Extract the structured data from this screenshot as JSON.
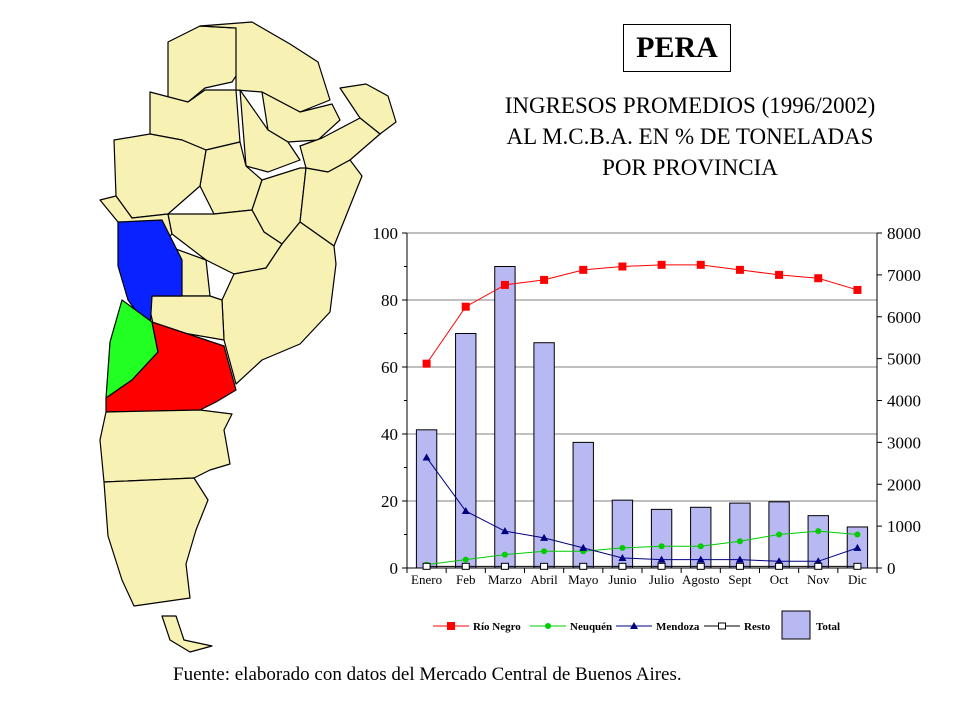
{
  "title_box": "PERA",
  "subtitle": {
    "line1": "INGRESOS PROMEDIOS (1996/2002)",
    "line2": "AL M.C.B.A. EN % DE TONELADAS",
    "line3": "POR PROVINCIA"
  },
  "source_note": "Fuente: elaborado con datos del Mercado Central de Buenos Aires.",
  "map": {
    "fill_default": "#f7f1b4",
    "highlighted": [
      {
        "province": "Mendoza",
        "color": "#0a22ff"
      },
      {
        "province": "Neuquén",
        "color": "#22ff22"
      },
      {
        "province": "Río Negro",
        "color": "#ff0000"
      }
    ]
  },
  "chart_data": {
    "type": "bar+line",
    "categories": [
      "Enero",
      "Feb",
      "Marzo",
      "Abril",
      "Mayo",
      "Junio",
      "Julio",
      "Agosto",
      "Sept",
      "Oct",
      "Nov",
      "Dic"
    ],
    "left_axis": {
      "min": 0,
      "max": 100,
      "ticks": [
        "0",
        "20",
        "40",
        "60",
        "80",
        "100"
      ]
    },
    "right_axis": {
      "min": 0,
      "max": 8000,
      "ticks": [
        "0",
        "1000",
        "2000",
        "3000",
        "4000",
        "5000",
        "6000",
        "7000",
        "8000"
      ]
    },
    "grid": true,
    "legend_position": "bottom",
    "bars": {
      "name": "Total",
      "axis": "right",
      "color": "#b8b8f2",
      "values": [
        3300,
        5600,
        7200,
        5380,
        3000,
        1620,
        1400,
        1450,
        1550,
        1580,
        1250,
        980
      ]
    },
    "series": [
      {
        "name": "Río Negro",
        "axis": "left",
        "color": "#ff0000",
        "marker": "square",
        "values": [
          61,
          78,
          84.5,
          86,
          89,
          90,
          90.5,
          90.5,
          89,
          87.5,
          86.5,
          83
        ]
      },
      {
        "name": "Neuquén",
        "axis": "left",
        "color": "#00cc00",
        "marker": "circle",
        "values": [
          1,
          2.5,
          4,
          5,
          5,
          6,
          6.5,
          6.5,
          8,
          10,
          11,
          10
        ]
      },
      {
        "name": "Mendoza",
        "axis": "left",
        "color": "#000080",
        "marker": "triangle",
        "values": [
          33,
          17,
          11,
          9,
          6,
          3,
          2.5,
          2.5,
          2.5,
          2,
          2,
          6
        ]
      },
      {
        "name": "Resto",
        "axis": "left",
        "color": "#000000",
        "marker": "open-square",
        "values": [
          0.5,
          0.5,
          0.5,
          0.5,
          0.5,
          0.5,
          0.5,
          0.5,
          0.5,
          0.5,
          0.5,
          0.5
        ]
      }
    ]
  }
}
